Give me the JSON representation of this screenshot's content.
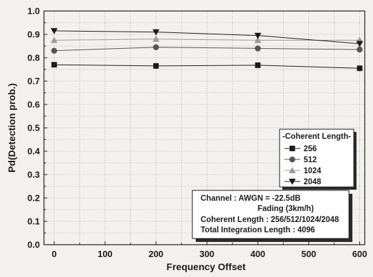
{
  "chart_data": {
    "type": "line",
    "xlabel": "Frequency Offset",
    "ylabel": "Pd(Detection prob.)",
    "xlim": [
      -20,
      610
    ],
    "ylim": [
      0,
      1.0
    ],
    "x_ticks": [
      "0",
      "100",
      "200",
      "300",
      "400",
      "500",
      "600"
    ],
    "y_ticks": [
      "0.0",
      "0.1",
      "0.2",
      "0.3",
      "0.4",
      "0.5",
      "0.6",
      "0.7",
      "0.8",
      "0.9",
      "1.0"
    ],
    "grid": true,
    "legend_title": "-Coherent Length-",
    "legend_position": "right",
    "x": [
      0,
      200,
      400,
      600
    ],
    "series": [
      {
        "name": "256",
        "values": [
          0.77,
          0.765,
          0.768,
          0.755
        ],
        "marker": "square",
        "color": "#1a1a1a"
      },
      {
        "name": "512",
        "values": [
          0.83,
          0.845,
          0.84,
          0.835
        ],
        "marker": "circle",
        "color": "#555555"
      },
      {
        "name": "1024",
        "values": [
          0.875,
          0.88,
          0.875,
          0.875
        ],
        "marker": "triangle-up",
        "color": "#9a9a9a"
      },
      {
        "name": "2048",
        "values": [
          0.915,
          0.91,
          0.895,
          0.86
        ],
        "marker": "triangle-down",
        "color": "#1a1a1a"
      }
    ],
    "annotation_lines": [
      "Channel : AWGN = -22.5dB",
      "Fading (3km/h)",
      "Coherent Length : 256/512/1024/2048",
      "Total Integration Length : 4096"
    ]
  }
}
